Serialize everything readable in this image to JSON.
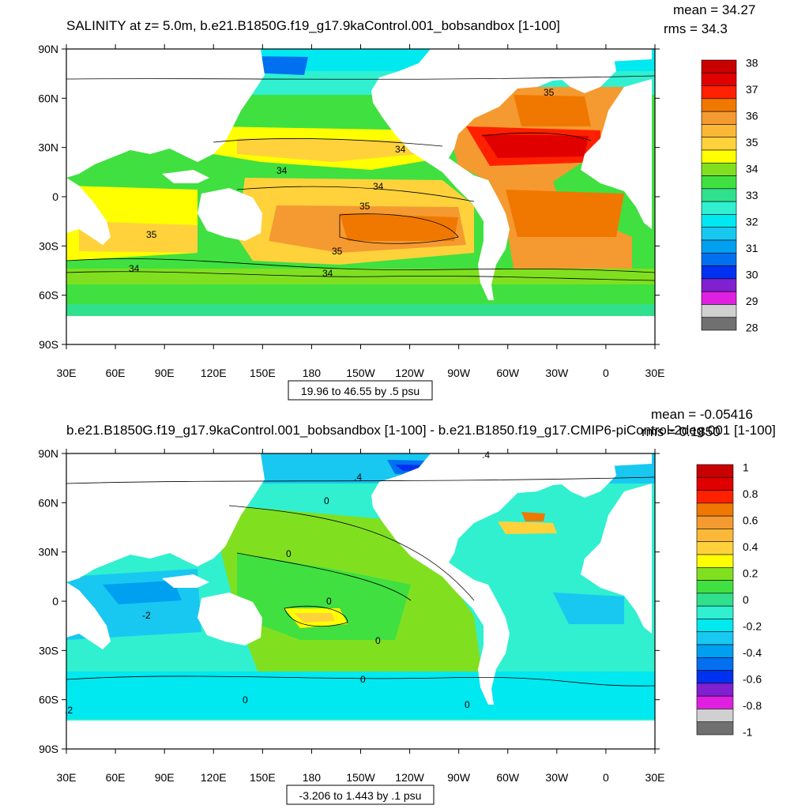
{
  "panels": [
    {
      "title": "SALINITY at z=   5.0m, b.e21.B1850G.f19_g17.9kaControl.001_bobsandbox [1-100]",
      "mean_text": "mean = 34.27",
      "rms_text": "rms = 34.3",
      "range_note": "19.96 to 46.55 by .5 psu",
      "lat_labels": [
        "90N",
        "60N",
        "30N",
        "0",
        "30S",
        "60S",
        "90S"
      ],
      "lon_labels": [
        "30E",
        "60E",
        "90E",
        "120E",
        "150E",
        "180",
        "150W",
        "120W",
        "90W",
        "60W",
        "30W",
        "0",
        "30E"
      ],
      "colorbar": {
        "labels": [
          "38",
          "37",
          "36",
          "35",
          "34",
          "33",
          "32",
          "31",
          "30",
          "29",
          "28"
        ],
        "colors": [
          "#c80000",
          "#e00000",
          "#ff2000",
          "#f07800",
          "#f59a30",
          "#fbb838",
          "#ffd23c",
          "#ffff00",
          "#80e020",
          "#40e040",
          "#30e08c",
          "#30f0d0",
          "#00e8f0",
          "#18c8f0",
          "#00a0f0",
          "#0070f0",
          "#0030f0",
          "#8020d0",
          "#e020e0",
          "#d0d0d0",
          "#707070"
        ]
      },
      "contour_labels": [
        "35",
        "34",
        "34",
        "34",
        "35",
        "35",
        "35",
        "34",
        "34"
      ],
      "chart_data": {
        "type": "heatmap",
        "variable": "Salinity",
        "units": "psu",
        "depth": "5.0m",
        "contour_min": 19.96,
        "contour_max": 46.55,
        "contour_interval": 0.5,
        "mean": 34.27,
        "rms": 34.3,
        "colorbar_levels": [
          28,
          29,
          30,
          31,
          32,
          33,
          34,
          35,
          36,
          37,
          38
        ],
        "lat_range": [
          -90,
          90
        ],
        "lon_range": [
          30,
          390
        ]
      }
    },
    {
      "title": "b.e21.B1850G.f19_g17.9kaControl.001_bobsandbox [1-100] - b.e21.B1850.f19_g17.CMIP6-piControl-2deg.001 [1-100]",
      "mean_text": "mean = -0.05416",
      "rms_text": "rms = 0.1850",
      "range_note": "-3.206 to 1.443 by .1 psu",
      "lat_labels": [
        "90N",
        "60N",
        "30N",
        "0",
        "30S",
        "60S",
        "90S"
      ],
      "lon_labels": [
        "30E",
        "60E",
        "90E",
        "120E",
        "150E",
        "180",
        "150W",
        "120W",
        "90W",
        "60W",
        "30W",
        "0",
        "30E"
      ],
      "colorbar": {
        "labels": [
          "1",
          "0.8",
          "0.6",
          "0.4",
          "0.2",
          "0",
          "-0.2",
          "-0.4",
          "-0.6",
          "-0.8",
          "-1"
        ],
        "colors": [
          "#c80000",
          "#e00000",
          "#ff2000",
          "#f07800",
          "#f59a30",
          "#fbb838",
          "#ffd23c",
          "#ffff00",
          "#80e020",
          "#40e040",
          "#30e08c",
          "#30f0d0",
          "#00e8f0",
          "#18c8f0",
          "#00a0f0",
          "#0070f0",
          "#0030f0",
          "#8020d0",
          "#e020e0",
          "#d0d0d0",
          "#707070"
        ]
      },
      "contour_labels": [
        "0",
        "0",
        "0",
        "0",
        "0",
        "0",
        "0",
        "-2",
        ".2",
        ".4",
        ".4"
      ],
      "chart_data": {
        "type": "heatmap",
        "variable": "Salinity difference",
        "units": "psu",
        "contour_min": -3.206,
        "contour_max": 1.443,
        "contour_interval": 0.1,
        "mean": -0.05416,
        "rms": 0.185,
        "colorbar_levels": [
          -1,
          -0.8,
          -0.6,
          -0.4,
          -0.2,
          0,
          0.2,
          0.4,
          0.6,
          0.8,
          1
        ],
        "lat_range": [
          -90,
          90
        ],
        "lon_range": [
          30,
          390
        ]
      }
    }
  ]
}
